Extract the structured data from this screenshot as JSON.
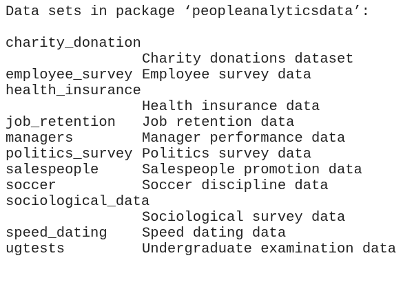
{
  "header": "Data sets in package ‘peopleanalyticsdata’:",
  "datasets": [
    {
      "name": "charity_donation",
      "description": "Charity donations dataset"
    },
    {
      "name": "employee_survey",
      "description": "Employee survey data"
    },
    {
      "name": "health_insurance",
      "description": "Health insurance data"
    },
    {
      "name": "job_retention",
      "description": "Job retention data"
    },
    {
      "name": "managers",
      "description": "Manager performance data"
    },
    {
      "name": "politics_survey",
      "description": "Politics survey data"
    },
    {
      "name": "salespeople",
      "description": "Salespeople promotion data"
    },
    {
      "name": "soccer",
      "description": "Soccer discipline data"
    },
    {
      "name": "sociological_data",
      "description": "Sociological survey data"
    },
    {
      "name": "speed_dating",
      "description": "Speed dating data"
    },
    {
      "name": "ugtests",
      "description": "Undergraduate examination data"
    }
  ]
}
